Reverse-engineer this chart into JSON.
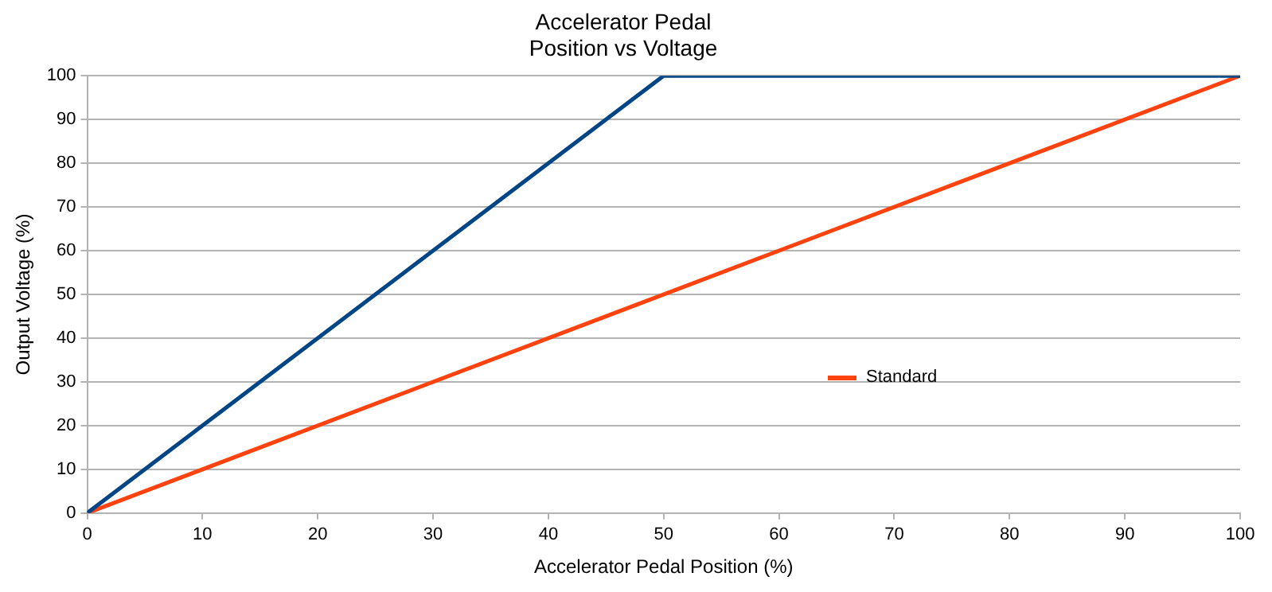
{
  "chart_data": {
    "type": "line",
    "title": "Accelerator Pedal\nPosition vs Voltage",
    "xlabel": "Accelerator Pedal Position (%)",
    "ylabel": "Output Voltage (%)",
    "series": [
      {
        "color": "#004586",
        "x": [
          0,
          50,
          100
        ],
        "values": [
          0,
          100,
          100
        ]
      },
      {
        "name": "Standard",
        "color": "#ff420e",
        "x": [
          0,
          100
        ],
        "values": [
          0,
          100
        ]
      }
    ],
    "xlim": [
      0,
      100
    ],
    "xticks": [
      0,
      10,
      20,
      30,
      40,
      50,
      60,
      70,
      80,
      90,
      100
    ],
    "ylim": [
      0,
      100
    ],
    "yticks": [
      0,
      10,
      20,
      30,
      40,
      50,
      60,
      70,
      80,
      90,
      100
    ],
    "grid": "y",
    "legend": "right",
    "marker": "none",
    "line_style": "solid"
  }
}
